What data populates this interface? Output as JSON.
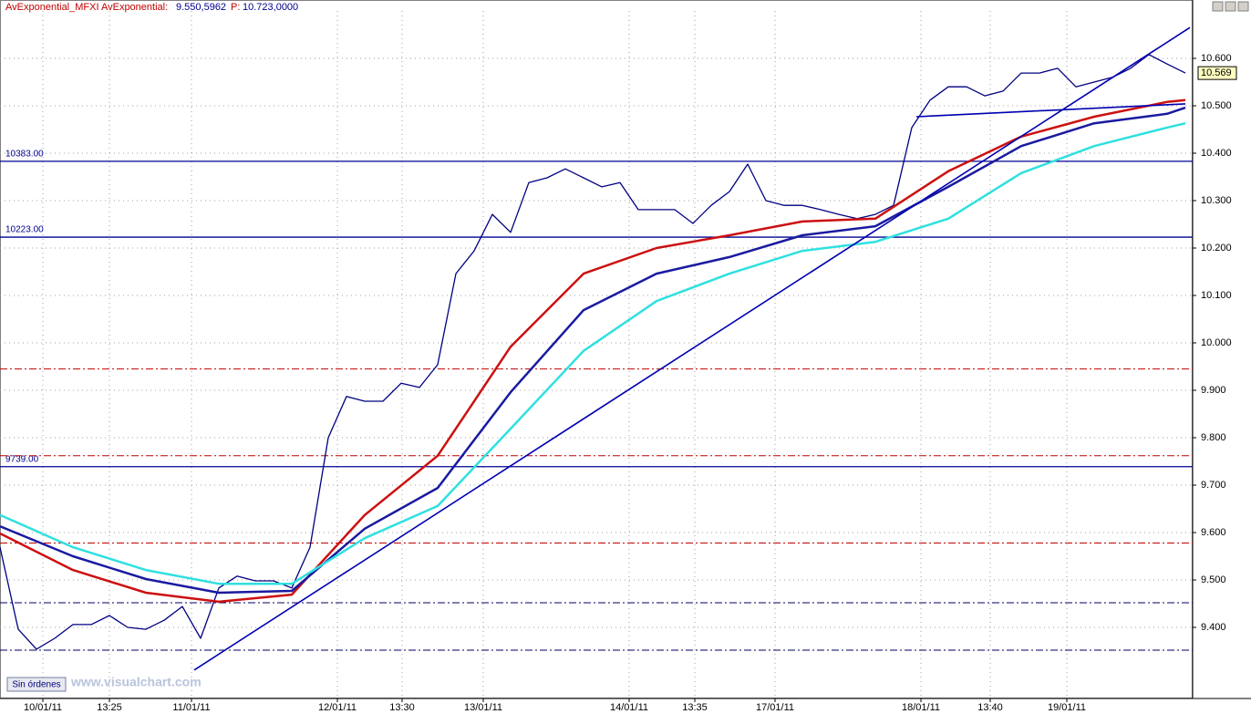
{
  "chart_data": {
    "type": "line",
    "header": {
      "indicator": "AvExponential_MFXI  AvExponential:",
      "value": "9.550,5962",
      "price_label": "P:",
      "price": "10.723,0000"
    },
    "xlim": [
      0,
      130.8
    ],
    "ylim": [
      9.25,
      10.7
    ],
    "xticks": [
      {
        "value": 4.7,
        "label": "10/01/11"
      },
      {
        "value": 12,
        "label": "13:25"
      },
      {
        "value": 21,
        "label": "11/01/11"
      },
      {
        "value": 37,
        "label": "12/01/11"
      },
      {
        "value": 44.1,
        "label": "13:30"
      },
      {
        "value": 53,
        "label": "13/01/11"
      },
      {
        "value": 69,
        "label": "14/01/11"
      },
      {
        "value": 76.2,
        "label": "13:35"
      },
      {
        "value": 85,
        "label": "17/01/11"
      },
      {
        "value": 101,
        "label": "18/01/11"
      },
      {
        "value": 108.6,
        "label": "13:40"
      },
      {
        "value": 117,
        "label": "19/01/11"
      }
    ],
    "yticks": [
      {
        "value": 9.4,
        "label": "9.400"
      },
      {
        "value": 9.5,
        "label": "9.500"
      },
      {
        "value": 9.6,
        "label": "9.600"
      },
      {
        "value": 9.7,
        "label": "9.700"
      },
      {
        "value": 9.8,
        "label": "9.800"
      },
      {
        "value": 9.9,
        "label": "9.900"
      },
      {
        "value": 10,
        "label": "10.000"
      },
      {
        "value": 10.1,
        "label": "10.100"
      },
      {
        "value": 10.2,
        "label": "10.200"
      },
      {
        "value": 10.3,
        "label": "10.300"
      },
      {
        "value": 10.4,
        "label": "10.400"
      },
      {
        "value": 10.5,
        "label": "10.500"
      },
      {
        "value": 10.6,
        "label": "10.600"
      }
    ],
    "grid": true,
    "series": [
      {
        "color": "#000080",
        "width": 1.3,
        "x": [
          0,
          2,
          4,
          6,
          8,
          10,
          12,
          14,
          16,
          18,
          20,
          22,
          24,
          26,
          28,
          30,
          32,
          34,
          36,
          38,
          40,
          42,
          44,
          46,
          48,
          50,
          52,
          54,
          56,
          58,
          60,
          62,
          64,
          66,
          68,
          70,
          72,
          74,
          76,
          78,
          80,
          82,
          84,
          86,
          88,
          90,
          92,
          94,
          96,
          98,
          100,
          102,
          104,
          106,
          108,
          110,
          112,
          114,
          116,
          118,
          120,
          122,
          124,
          126,
          128,
          130
        ],
        "values": [
          9.569,
          9.396,
          9.354,
          9.377,
          9.406,
          9.406,
          9.425,
          9.4,
          9.396,
          9.415,
          9.444,
          9.377,
          9.483,
          9.508,
          9.498,
          9.498,
          9.483,
          9.569,
          9.8,
          9.887,
          9.877,
          9.877,
          9.915,
          9.906,
          9.954,
          10.146,
          10.194,
          10.271,
          10.233,
          10.338,
          10.348,
          10.367,
          10.348,
          10.329,
          10.338,
          10.281,
          10.281,
          10.281,
          10.252,
          10.29,
          10.319,
          10.377,
          10.3,
          10.29,
          10.29,
          10.281,
          10.271,
          10.262,
          10.271,
          10.29,
          10.454,
          10.512,
          10.54,
          10.54,
          10.521,
          10.531,
          10.569,
          10.569,
          10.579,
          10.54,
          10.55,
          10.56,
          10.579,
          10.608,
          10.588,
          10.569
        ]
      },
      {
        "color": "#cc1010",
        "width": 2.5,
        "x": [
          0,
          8,
          16,
          24,
          32,
          40,
          48,
          56,
          64,
          72,
          80,
          88,
          96,
          104,
          112,
          120,
          128,
          130
        ],
        "values": [
          9.598,
          9.521,
          9.473,
          9.454,
          9.469,
          9.637,
          9.762,
          9.992,
          10.146,
          10.2,
          10.227,
          10.256,
          10.262,
          10.362,
          10.435,
          10.477,
          10.508,
          10.512
        ]
      },
      {
        "color": "#1a1aa0",
        "width": 2.5,
        "x": [
          0,
          8,
          16,
          24,
          32,
          40,
          48,
          56,
          64,
          72,
          80,
          88,
          96,
          104,
          112,
          120,
          128,
          130
        ],
        "values": [
          9.613,
          9.55,
          9.502,
          9.473,
          9.477,
          9.608,
          9.694,
          9.896,
          10.069,
          10.146,
          10.181,
          10.227,
          10.246,
          10.329,
          10.415,
          10.463,
          10.483,
          10.496
        ]
      },
      {
        "color": "#30e0e0",
        "width": 2.5,
        "x": [
          0,
          8,
          16,
          24,
          32,
          40,
          48,
          56,
          64,
          72,
          80,
          88,
          96,
          104,
          112,
          120,
          128,
          130
        ],
        "values": [
          9.637,
          9.569,
          9.521,
          9.492,
          9.492,
          9.588,
          9.656,
          9.819,
          9.983,
          10.088,
          10.146,
          10.194,
          10.213,
          10.262,
          10.358,
          10.415,
          10.454,
          10.463
        ]
      },
      {
        "color": "#0000b0",
        "width": 1.6,
        "x": [
          21.3,
          130.5
        ],
        "values": [
          9.31,
          10.665
        ]
      },
      {
        "color": "#0000b0",
        "width": 1.6,
        "x": [
          100.5,
          130
        ],
        "values": [
          10.477,
          10.504
        ]
      }
    ],
    "levels": [
      {
        "value": 10.383,
        "label": "10383.00"
      },
      {
        "value": 10.223,
        "label": "10223.00"
      },
      {
        "value": 9.739,
        "label": "9739.00"
      }
    ],
    "level_color": "#000090",
    "dashed_levels": {
      "color": "#c00000",
      "values": [
        9.945,
        9.762,
        9.578
      ]
    },
    "dashdot_levels": {
      "color": "#000060",
      "values": [
        9.452,
        9.352
      ]
    },
    "last_price": 10.569,
    "button": "Sin órdenes",
    "watermark": "www.visualchart.com"
  }
}
